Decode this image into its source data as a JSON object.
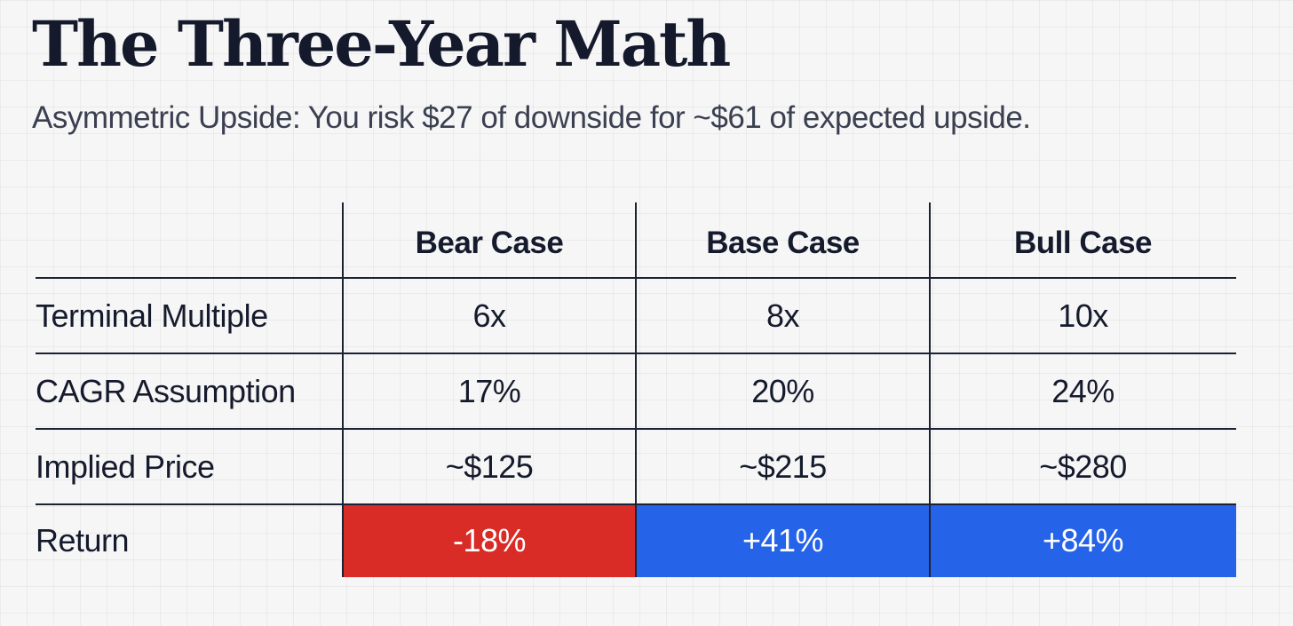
{
  "title": "The Three-Year Math",
  "subtitle": "Asymmetric Upside: You risk $27 of downside for ~$61 of expected upside.",
  "table": {
    "columns": [
      "Bear Case",
      "Base Case",
      "Bull Case"
    ],
    "rows": [
      {
        "label": "Terminal Multiple",
        "values": [
          "6x",
          "8x",
          "10x"
        ]
      },
      {
        "label": "CAGR Assumption",
        "values": [
          "17%",
          "20%",
          "24%"
        ]
      },
      {
        "label": "Implied Price",
        "values": [
          "~$125",
          "~$215",
          "~$280"
        ]
      },
      {
        "label": "Return",
        "values": [
          "-18%",
          "+41%",
          "+84%"
        ]
      }
    ]
  },
  "colors": {
    "negative": "#d92c27",
    "positive": "#2563e8"
  }
}
